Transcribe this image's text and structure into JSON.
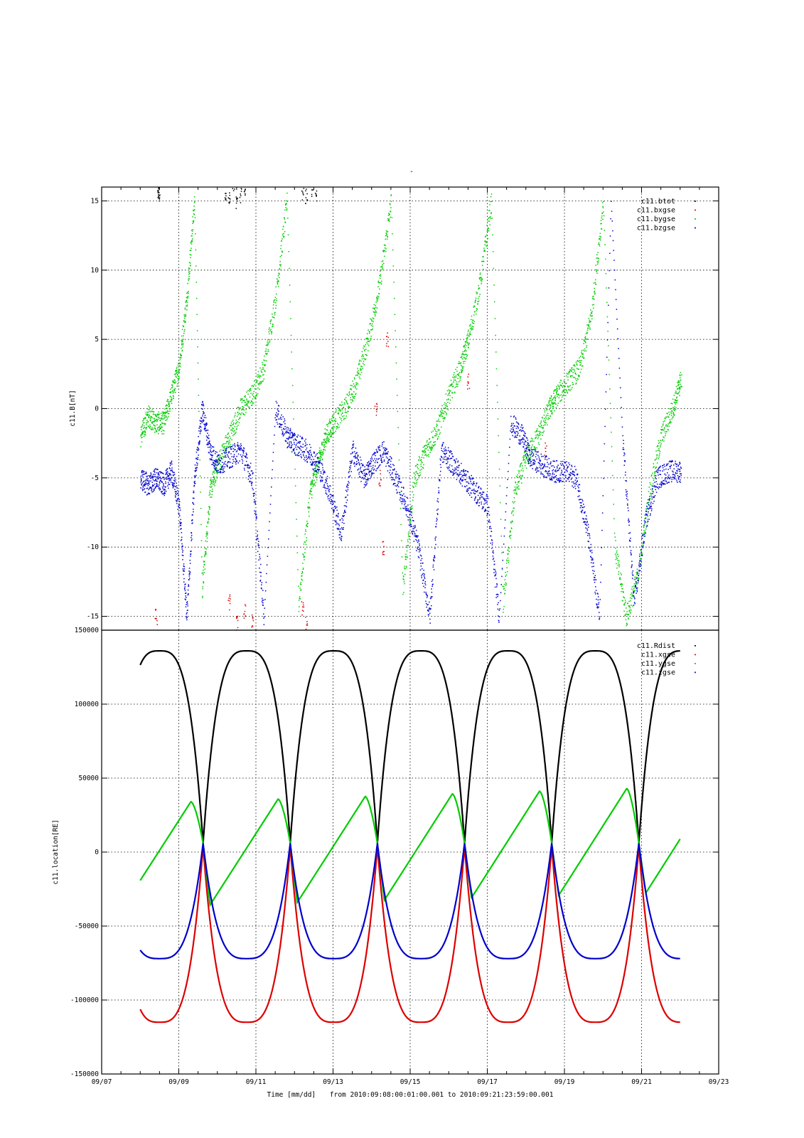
{
  "figure": {
    "top_title": "-",
    "time_caption_prefix": "Time [mm/dd]",
    "time_caption_range": "from 2010:09:08:00:01:00.001  to  2010:09:21:23:59:00.001",
    "x_tick_labels": [
      "09/07",
      "09/09",
      "09/11",
      "09/13",
      "09/15",
      "09/17",
      "09/19",
      "09/21",
      "09/23"
    ]
  },
  "chart_data": [
    {
      "type": "scatter",
      "title": "-",
      "xlabel": "",
      "ylabel": "c11.B[nT]",
      "x_unit": "days since 09/07 00:00 (2010)",
      "xlim": [
        0,
        16
      ],
      "ylim": [
        -16,
        16
      ],
      "y_ticks": [
        -15,
        -10,
        -5,
        0,
        5,
        10,
        15
      ],
      "grid": true,
      "legend_position": "top-right",
      "series": [
        {
          "name": "c11.btot",
          "color": "#000000",
          "note": "mostly off-scale above +16 nT; short visible fragments at top edge",
          "x": [
            1.45,
            1.46,
            1.47,
            3.2,
            3.3,
            3.4,
            3.5,
            3.6,
            3.7,
            5.2,
            5.3,
            5.45,
            5.55
          ],
          "y": [
            15.6,
            15.8,
            15.5,
            15.7,
            15.2,
            15.9,
            14.8,
            15.5,
            15.9,
            15.7,
            15.3,
            15.8,
            15.6
          ]
        },
        {
          "name": "c11.bxgse",
          "color": "#dd0000",
          "note": "mostly off-scale; fragments near -15 nT and crossings",
          "x": [
            1.4,
            3.3,
            3.5,
            3.7,
            3.9,
            5.2,
            5.3,
            7.1,
            7.2,
            7.3,
            7.4,
            9.5,
            11.5
          ],
          "y": [
            -15.0,
            -14.0,
            -15.5,
            -14.6,
            -15.2,
            -14.5,
            -15.6,
            0.0,
            -5.0,
            -10.0,
            5.0,
            2.0,
            -3.0
          ]
        },
        {
          "name": "c11.bygse",
          "color": "#00cc00",
          "x": [
            1.0,
            1.2,
            1.4,
            1.6,
            1.8,
            2.0,
            2.2,
            2.4,
            2.6,
            2.8,
            3.0,
            3.3,
            3.6,
            3.9,
            4.2,
            4.5,
            4.8,
            5.1,
            5.4,
            5.6,
            5.8,
            6.0,
            6.3,
            6.6,
            6.9,
            7.2,
            7.5,
            7.8,
            8.1,
            8.4,
            8.7,
            9.0,
            9.3,
            9.5,
            9.8,
            10.1,
            10.4,
            10.7,
            11.0,
            11.3,
            11.6,
            11.8,
            12.1,
            12.4,
            12.7,
            13.0,
            13.3,
            13.6,
            13.9,
            14.2,
            14.5,
            14.8,
            15.0
          ],
          "y": [
            -2.0,
            -0.5,
            -1.0,
            -1.0,
            1.0,
            3.0,
            8.0,
            15.0,
            -13.0,
            -6.0,
            -4.0,
            -2.0,
            0.0,
            1.0,
            3.0,
            8.0,
            15.0,
            -14.0,
            -6.0,
            -4.0,
            -2.0,
            -1.0,
            0.0,
            2.0,
            5.0,
            9.0,
            15.0,
            -13.0,
            -5.0,
            -3.0,
            -1.5,
            1.0,
            3.0,
            5.0,
            9.0,
            15.0,
            -14.0,
            -6.0,
            -3.5,
            -2.0,
            0.0,
            1.0,
            2.0,
            3.0,
            7.0,
            15.0,
            -10.0,
            -15.0,
            -12.0,
            -6.0,
            -2.0,
            0.0,
            2.0
          ]
        },
        {
          "name": "c11.bzgse",
          "color": "#0000cc",
          "x": [
            1.0,
            1.2,
            1.4,
            1.6,
            1.8,
            2.0,
            2.2,
            2.4,
            2.6,
            2.8,
            3.0,
            3.3,
            3.6,
            3.9,
            4.2,
            4.5,
            4.8,
            5.0,
            5.3,
            5.6,
            5.9,
            6.2,
            6.5,
            6.8,
            7.0,
            7.3,
            7.6,
            7.9,
            8.2,
            8.5,
            8.8,
            9.1,
            9.4,
            9.7,
            10.0,
            10.3,
            10.6,
            10.9,
            11.1,
            11.4,
            11.7,
            12.0,
            12.3,
            12.6,
            12.9,
            13.2,
            13.5,
            13.8,
            14.1,
            14.4,
            14.7,
            15.0
          ],
          "y": [
            -5.0,
            -5.5,
            -5.0,
            -5.5,
            -4.5,
            -7.0,
            -15.0,
            -5.0,
            0.0,
            -3.0,
            -4.0,
            -3.5,
            -3.0,
            -5.0,
            -15.0,
            0.0,
            -2.0,
            -2.5,
            -3.0,
            -4.0,
            -6.0,
            -9.0,
            -3.0,
            -5.0,
            -4.0,
            -3.0,
            -5.0,
            -7.0,
            -10.0,
            -15.0,
            -3.0,
            -4.0,
            -5.0,
            -6.0,
            -7.0,
            -15.0,
            -1.0,
            -2.0,
            -3.5,
            -4.0,
            -4.5,
            -4.5,
            -5.0,
            -9.0,
            -15.0,
            15.0,
            -2.0,
            -14.0,
            -8.0,
            -5.0,
            -4.5,
            -4.5
          ]
        }
      ]
    },
    {
      "type": "line",
      "title": "",
      "xlabel": "Time [mm/dd]",
      "ylabel": "c11.location[RE]",
      "x_unit": "days since 09/07 00:00 (2010)",
      "xlim": [
        0,
        16
      ],
      "ylim": [
        -150000,
        150000
      ],
      "y_ticks": [
        -150000,
        -100000,
        -50000,
        0,
        50000,
        100000,
        150000
      ],
      "grid": true,
      "legend_position": "top-right",
      "orbit": {
        "period_days": 2.26,
        "apogee_time_days": 1.5,
        "perigee_time_days": 2.63,
        "t_start_days": 1.0,
        "t_end_days": 15.0
      },
      "series": [
        {
          "name": "c11.Rdist",
          "color": "#000000",
          "apogee_value": 136000,
          "perigee_value": 6000
        },
        {
          "name": "c11.xgse",
          "color": "#dd0000",
          "apogee_value": -115000,
          "perigee_value": 4000
        },
        {
          "name": "c11.ygse",
          "color": "#00cc00",
          "apogee_value_start": 33000,
          "apogee_value_end": 44000,
          "post_perigee_min_start": -37000,
          "post_perigee_min_end": -27000,
          "start_value": -30000,
          "end_value": 18000
        },
        {
          "name": "c11.zgse",
          "color": "#0000cc",
          "apogee_value": -72000,
          "perigee_value": 6000
        }
      ]
    }
  ]
}
